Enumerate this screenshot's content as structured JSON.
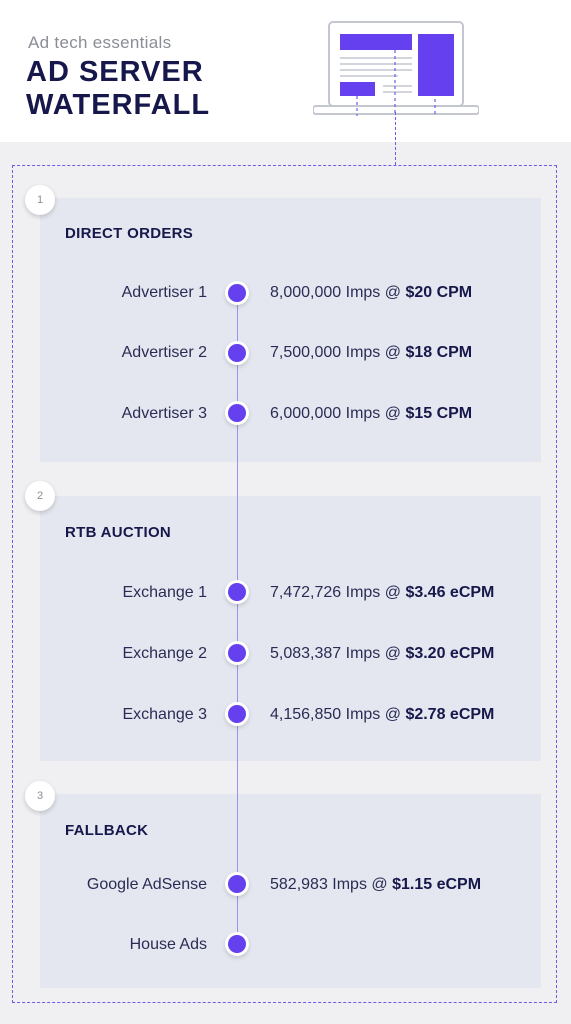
{
  "header": {
    "subtitle": "Ad tech essentials",
    "title_line1": "AD SERVER",
    "title_line2": "WATERFALL"
  },
  "colors": {
    "accent": "#6440ee",
    "title": "#16174a",
    "section_bg": "#e4e7ef",
    "page_bg": "#f0f0f2"
  },
  "sections": [
    {
      "step": "1",
      "title": "DIRECT ORDERS",
      "rows": [
        {
          "label": "Advertiser 1",
          "imps": "8,000,000 Imps @",
          "price": "$20 CPM"
        },
        {
          "label": "Advertiser 2",
          "imps": "7,500,000 Imps @",
          "price": "$18 CPM"
        },
        {
          "label": "Advertiser 3",
          "imps": "6,000,000 Imps @",
          "price": "$15 CPM"
        }
      ]
    },
    {
      "step": "2",
      "title": "RTB AUCTION",
      "rows": [
        {
          "label": "Exchange 1",
          "imps": "7,472,726 Imps @",
          "price": "$3.46 eCPM"
        },
        {
          "label": "Exchange 2",
          "imps": "5,083,387 Imps @",
          "price": "$3.20 eCPM"
        },
        {
          "label": "Exchange 3",
          "imps": "4,156,850 Imps @",
          "price": "$2.78 eCPM"
        }
      ]
    },
    {
      "step": "3",
      "title": "FALLBACK",
      "rows": [
        {
          "label": "Google AdSense",
          "imps": "582,983 Imps @",
          "price": "$1.15 eCPM"
        },
        {
          "label": "House Ads",
          "imps": "",
          "price": ""
        }
      ]
    }
  ]
}
